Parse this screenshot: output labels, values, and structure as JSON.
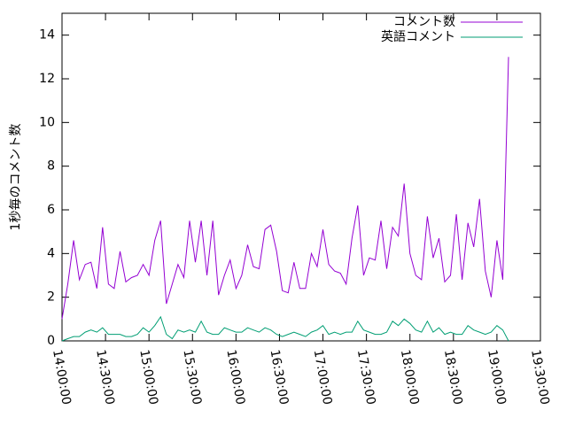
{
  "chart_data": {
    "type": "line",
    "y_label": "1秒毎のコメント数",
    "x": [
      "14:00:00",
      "14:04:00",
      "14:08:00",
      "14:12:00",
      "14:16:00",
      "14:20:00",
      "14:24:00",
      "14:28:00",
      "14:32:00",
      "14:36:00",
      "14:40:00",
      "14:44:00",
      "14:48:00",
      "14:52:00",
      "14:56:00",
      "15:00:00",
      "15:04:00",
      "15:08:00",
      "15:12:00",
      "15:16:00",
      "15:20:00",
      "15:24:00",
      "15:28:00",
      "15:32:00",
      "15:36:00",
      "15:40:00",
      "15:44:00",
      "15:48:00",
      "15:52:00",
      "15:56:00",
      "16:00:00",
      "16:04:00",
      "16:08:00",
      "16:12:00",
      "16:16:00",
      "16:20:00",
      "16:24:00",
      "16:28:00",
      "16:32:00",
      "16:36:00",
      "16:40:00",
      "16:44:00",
      "16:48:00",
      "16:52:00",
      "16:56:00",
      "17:00:00",
      "17:04:00",
      "17:08:00",
      "17:12:00",
      "17:16:00",
      "17:20:00",
      "17:24:00",
      "17:28:00",
      "17:32:00",
      "17:36:00",
      "17:40:00",
      "17:44:00",
      "17:48:00",
      "17:52:00",
      "17:56:00",
      "18:00:00",
      "18:04:00",
      "18:08:00",
      "18:12:00",
      "18:16:00",
      "18:20:00",
      "18:24:00",
      "18:28:00",
      "18:32:00",
      "18:36:00",
      "18:40:00",
      "18:44:00",
      "18:48:00",
      "18:52:00",
      "18:56:00",
      "19:00:00",
      "19:04:00",
      "19:08:00"
    ],
    "series": [
      {
        "name": "コメント数",
        "color": "#9400d3",
        "values": [
          1.0,
          2.6,
          4.6,
          2.8,
          3.5,
          3.6,
          2.4,
          5.2,
          2.6,
          2.4,
          4.1,
          2.7,
          2.9,
          3.0,
          3.5,
          3.0,
          4.6,
          5.5,
          1.7,
          2.6,
          3.5,
          2.9,
          5.5,
          3.6,
          5.5,
          3.0,
          5.5,
          2.1,
          3.0,
          3.7,
          2.4,
          3.0,
          4.4,
          3.4,
          3.3,
          5.1,
          5.3,
          4.1,
          2.3,
          2.2,
          3.6,
          2.4,
          2.4,
          4.0,
          3.4,
          5.1,
          3.5,
          3.2,
          3.1,
          2.6,
          4.7,
          6.2,
          3.0,
          3.8,
          3.7,
          5.5,
          3.3,
          5.2,
          4.8,
          7.2,
          4.0,
          3.0,
          2.8,
          5.7,
          3.8,
          4.7,
          2.7,
          3.0,
          5.8,
          2.8,
          5.4,
          4.3,
          6.5,
          3.2,
          2.0,
          4.6,
          2.8,
          13.0
        ]
      },
      {
        "name": "英語コメント",
        "color": "#009e73",
        "values": [
          0,
          0.1,
          0.2,
          0.2,
          0.4,
          0.5,
          0.4,
          0.6,
          0.3,
          0.3,
          0.3,
          0.2,
          0.2,
          0.3,
          0.6,
          0.4,
          0.7,
          1.1,
          0.3,
          0.1,
          0.5,
          0.4,
          0.5,
          0.4,
          0.9,
          0.4,
          0.3,
          0.3,
          0.6,
          0.5,
          0.4,
          0.4,
          0.6,
          0.5,
          0.4,
          0.6,
          0.5,
          0.3,
          0.2,
          0.3,
          0.4,
          0.3,
          0.2,
          0.4,
          0.5,
          0.7,
          0.3,
          0.4,
          0.3,
          0.4,
          0.4,
          0.9,
          0.5,
          0.4,
          0.3,
          0.3,
          0.4,
          0.9,
          0.7,
          1.0,
          0.8,
          0.5,
          0.4,
          0.9,
          0.4,
          0.6,
          0.3,
          0.4,
          0.3,
          0.3,
          0.7,
          0.5,
          0.4,
          0.3,
          0.4,
          0.7,
          0.5,
          0
        ]
      }
    ],
    "xlim": [
      "14:00:00",
      "19:30:00"
    ],
    "xticks": [
      "14:00:00",
      "14:30:00",
      "15:00:00",
      "15:30:00",
      "16:00:00",
      "16:30:00",
      "17:00:00",
      "17:30:00",
      "18:00:00",
      "18:30:00",
      "19:00:00",
      "19:30:00"
    ],
    "ylim": [
      0,
      15
    ],
    "yticks": [
      0,
      2,
      4,
      6,
      8,
      10,
      12,
      14
    ],
    "legend": "top-right"
  }
}
